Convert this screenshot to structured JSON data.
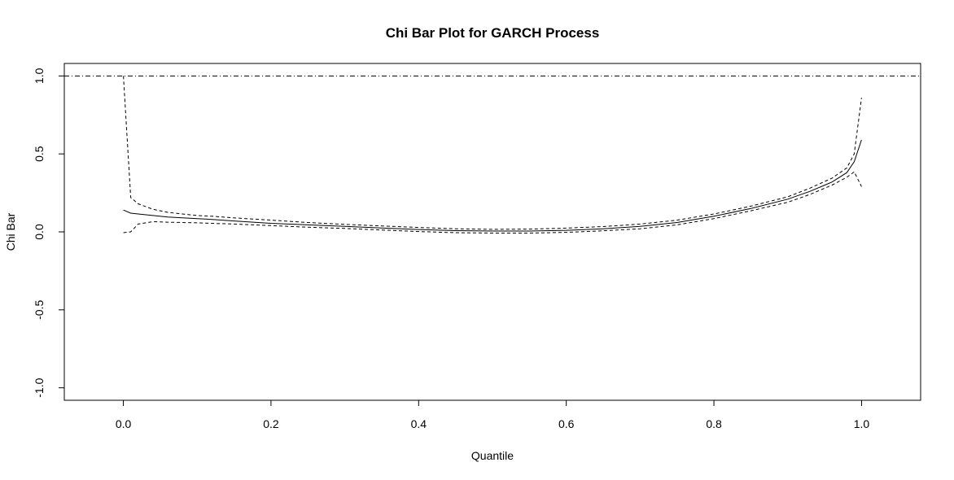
{
  "chart_data": {
    "type": "line",
    "title": "Chi Bar Plot for GARCH Process",
    "xlabel": "Quantile",
    "ylabel": "Chi Bar",
    "xlim": [
      -0.08,
      1.08
    ],
    "ylim": [
      -1.08,
      1.08
    ],
    "xticks": [
      "0.0",
      "0.2",
      "0.4",
      "0.6",
      "0.8",
      "1.0"
    ],
    "xtick_values": [
      0,
      0.2,
      0.4,
      0.6,
      0.8,
      1.0
    ],
    "yticks": [
      "-1.0",
      "-0.5",
      "0.0",
      "0.5",
      "1.0"
    ],
    "ytick_values": [
      -1.0,
      -0.5,
      0.0,
      0.5,
      1.0
    ],
    "grid": false,
    "reference_line": {
      "y": 1.0,
      "style": "dot-dash"
    },
    "x": [
      0.0,
      0.01,
      0.02,
      0.04,
      0.06,
      0.08,
      0.1,
      0.12,
      0.15,
      0.2,
      0.25,
      0.3,
      0.35,
      0.4,
      0.45,
      0.5,
      0.55,
      0.6,
      0.65,
      0.7,
      0.75,
      0.8,
      0.85,
      0.9,
      0.93,
      0.96,
      0.98,
      0.99,
      1.0
    ],
    "series": [
      {
        "style": "solid",
        "values": [
          0.14,
          0.12,
          0.115,
          0.105,
          0.095,
          0.09,
          0.085,
          0.08,
          0.07,
          0.055,
          0.045,
          0.035,
          0.025,
          0.015,
          0.008,
          0.005,
          0.005,
          0.01,
          0.02,
          0.035,
          0.06,
          0.1,
          0.15,
          0.21,
          0.26,
          0.32,
          0.38,
          0.45,
          0.59
        ]
      },
      {
        "style": "dashed",
        "values": [
          1.0,
          0.22,
          0.18,
          0.145,
          0.125,
          0.115,
          0.105,
          0.1,
          0.09,
          0.075,
          0.06,
          0.048,
          0.038,
          0.028,
          0.02,
          0.016,
          0.018,
          0.024,
          0.034,
          0.05,
          0.075,
          0.115,
          0.165,
          0.225,
          0.28,
          0.345,
          0.41,
          0.5,
          0.86
        ]
      },
      {
        "style": "dashed",
        "values": [
          -0.005,
          0.0,
          0.05,
          0.065,
          0.062,
          0.06,
          0.058,
          0.055,
          0.05,
          0.04,
          0.03,
          0.022,
          0.012,
          0.002,
          -0.005,
          -0.008,
          -0.008,
          -0.003,
          0.007,
          0.02,
          0.045,
          0.085,
          0.135,
          0.19,
          0.24,
          0.3,
          0.35,
          0.385,
          0.29
        ]
      }
    ]
  }
}
